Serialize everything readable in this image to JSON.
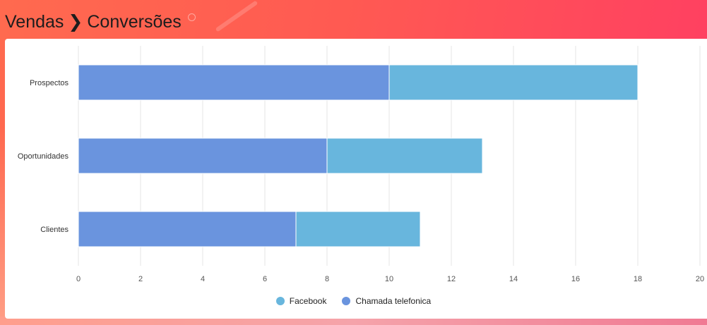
{
  "header": {
    "section": "Vendas",
    "separator": "❯",
    "page": "Conversões"
  },
  "colors": {
    "chamada": "#6a94de",
    "facebook": "#68b6dd",
    "grid": "#e4e4e4",
    "tick_text": "#555555"
  },
  "chart_data": {
    "type": "bar",
    "orientation": "horizontal",
    "stacked": true,
    "categories": [
      "Prospectos",
      "Oportunidades",
      "Clientes"
    ],
    "series": [
      {
        "name": "Chamada telefonica",
        "values": [
          10,
          8,
          7
        ]
      },
      {
        "name": "Facebook",
        "values": [
          8,
          5,
          4
        ]
      }
    ],
    "xlim": [
      0,
      20
    ],
    "xticks": [
      "0",
      "2",
      "4",
      "6",
      "8",
      "10",
      "12",
      "14",
      "16",
      "18",
      "20"
    ],
    "grid": true,
    "legend_position": "bottom-center",
    "legend": [
      "Facebook",
      "Chamada telefonica"
    ]
  }
}
